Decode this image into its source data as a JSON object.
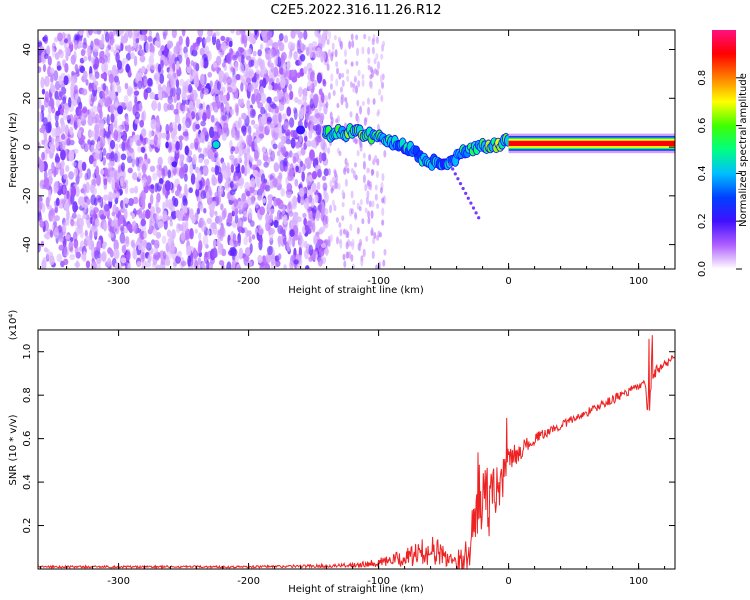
{
  "figure": {
    "title": "C2E5.2022.316.11.26.R12"
  },
  "chart_data": [
    {
      "type": "heatmap",
      "title": "C2E5.2022.316.11.26.R12",
      "xlabel": "Height of straight line (km)",
      "ylabel": "Frequency (Hz)",
      "xlim": [
        -362,
        128
      ],
      "ylim": [
        -50,
        48
      ],
      "xticks": [
        -300,
        -200,
        -100,
        0,
        100
      ],
      "yticks": [
        -40,
        -20,
        0,
        20,
        40
      ],
      "colorbar": {
        "label": "Normalized spectral amplitude",
        "range": [
          0,
          1
        ],
        "ticks": [
          0.0,
          0.2,
          0.4,
          0.6,
          0.8
        ],
        "colormap": [
          "#ffffff",
          "#b060ff",
          "#4010ff",
          "#0040ff",
          "#00c0ff",
          "#00ff80",
          "#40ff00",
          "#ffff00",
          "#ff8000",
          "#ff0000",
          "#ff1080"
        ]
      },
      "ridge": {
        "x": [
          -225,
          -160,
          -140,
          -130,
          -120,
          -110,
          -100,
          -90,
          -80,
          -70,
          -60,
          -50,
          -40,
          -30,
          -20,
          -10,
          0,
          10,
          20,
          40,
          60,
          80,
          100,
          128
        ],
        "y": [
          1,
          7,
          5,
          6,
          6,
          5,
          4,
          2,
          0,
          -3,
          -6,
          -7,
          -4,
          -1,
          0,
          1,
          2,
          1,
          1.5,
          1.5,
          1.5,
          1.5,
          1.5,
          1.5
        ],
        "amplitude": [
          0.45,
          0.2,
          0.55,
          0.6,
          0.6,
          0.6,
          0.55,
          0.5,
          0.45,
          0.45,
          0.5,
          0.4,
          0.45,
          0.55,
          0.6,
          0.65,
          0.7,
          0.85,
          0.9,
          0.9,
          0.9,
          0.9,
          0.9,
          0.9
        ]
      },
      "noise_region": {
        "dense_x": [
          -362,
          -140
        ],
        "sparse_x": [
          -140,
          -95
        ],
        "sparse_amplitude": 0.1
      }
    },
    {
      "type": "line",
      "xlabel": "Height of straight line (km)",
      "ylabel": "SNR (10 * v/v)",
      "yscale_label": "(x10⁴)",
      "xlim": [
        -362,
        128
      ],
      "ylim": [
        0,
        1.1
      ],
      "xticks": [
        -300,
        -200,
        -100,
        0,
        100
      ],
      "yticks": [
        0.2,
        0.4,
        0.6,
        0.8,
        1.0
      ],
      "series": [
        {
          "color": "#ee2222",
          "x": [
            -362,
            -300,
            -200,
            -130,
            -100,
            -80,
            -60,
            -45,
            -35,
            -30,
            -25,
            -20,
            -15,
            -10,
            -5,
            0,
            10,
            20,
            30,
            40,
            50,
            60,
            70,
            80,
            90,
            100,
            105,
            108,
            110,
            115,
            120,
            128
          ],
          "y": [
            0.01,
            0.01,
            0.01,
            0.015,
            0.03,
            0.05,
            0.09,
            0.05,
            0.04,
            0.1,
            0.3,
            0.35,
            0.3,
            0.35,
            0.4,
            0.5,
            0.55,
            0.6,
            0.63,
            0.66,
            0.69,
            0.72,
            0.75,
            0.78,
            0.81,
            0.84,
            0.85,
            0.7,
            0.9,
            0.92,
            0.94,
            0.98
          ],
          "noise": [
            0.005,
            0.005,
            0.005,
            0.008,
            0.02,
            0.04,
            0.07,
            0.05,
            0.05,
            0.1,
            0.15,
            0.18,
            0.15,
            0.12,
            0.1,
            0.06,
            0.04,
            0.025,
            0.02,
            0.02,
            0.02,
            0.02,
            0.02,
            0.02,
            0.02,
            0.02,
            0.02,
            0.05,
            0.05,
            0.02,
            0.02,
            0.02
          ]
        }
      ]
    }
  ]
}
